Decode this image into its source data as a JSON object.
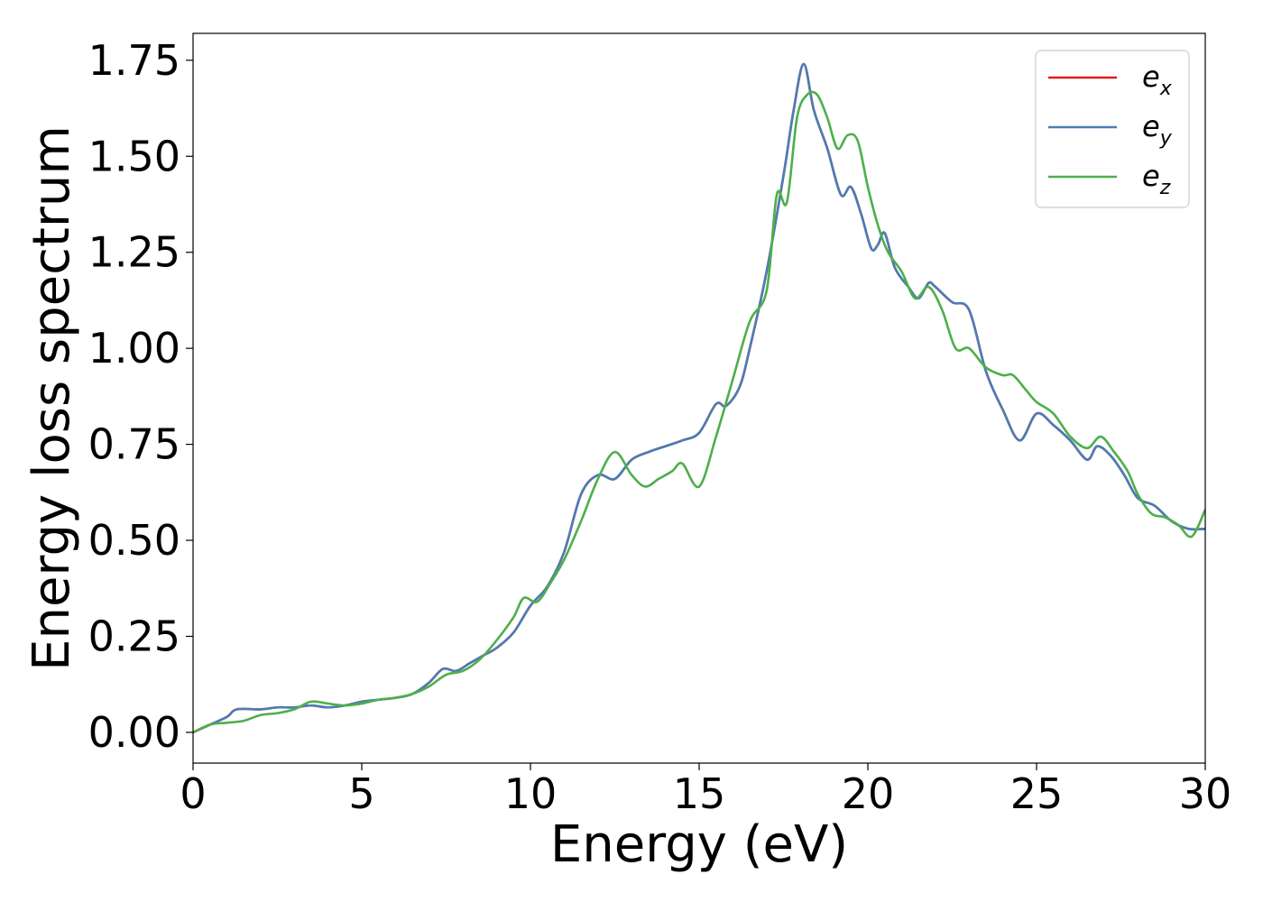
{
  "chart_data": {
    "type": "line",
    "title": "",
    "xlabel": "Energy (eV)",
    "ylabel": "Energy loss spectrum",
    "xlim": [
      0,
      30
    ],
    "ylim": [
      -0.08,
      1.82
    ],
    "x_ticks": [
      0,
      5,
      10,
      15,
      20,
      25,
      30
    ],
    "y_ticks": [
      0.0,
      0.25,
      0.5,
      0.75,
      1.0,
      1.25,
      1.5,
      1.75
    ],
    "grid": false,
    "legend_position": "top-right",
    "series": [
      {
        "name": "e",
        "subscript": "x",
        "color": "#e41a1c",
        "x": [
          0,
          0.5,
          1.0,
          1.3,
          2.0,
          2.5,
          3.0,
          3.5,
          4.0,
          4.5,
          5.0,
          5.5,
          6.0,
          6.5,
          7.0,
          7.4,
          7.8,
          8.2,
          8.6,
          9.0,
          9.5,
          10.0,
          10.5,
          11.0,
          11.5,
          12.0,
          12.5,
          13.0,
          13.5,
          14.0,
          14.5,
          15.0,
          15.5,
          15.8,
          16.2,
          16.5,
          17.0,
          17.5,
          17.8,
          18.1,
          18.4,
          18.8,
          19.2,
          19.5,
          19.8,
          20.1,
          20.3,
          20.5,
          20.8,
          21.2,
          21.5,
          21.8,
          22.0,
          22.5,
          23.0,
          23.5,
          24.0,
          24.5,
          25.0,
          25.5,
          26.0,
          26.5,
          26.8,
          27.2,
          27.6,
          28.0,
          28.5,
          29.0,
          29.5,
          30.0
        ],
        "values": [
          0.0,
          0.02,
          0.04,
          0.06,
          0.06,
          0.065,
          0.065,
          0.07,
          0.065,
          0.07,
          0.08,
          0.085,
          0.09,
          0.1,
          0.13,
          0.165,
          0.16,
          0.18,
          0.2,
          0.22,
          0.26,
          0.33,
          0.38,
          0.47,
          0.62,
          0.67,
          0.66,
          0.71,
          0.73,
          0.745,
          0.76,
          0.78,
          0.855,
          0.85,
          0.9,
          1.0,
          1.2,
          1.45,
          1.62,
          1.74,
          1.62,
          1.52,
          1.4,
          1.42,
          1.35,
          1.26,
          1.27,
          1.3,
          1.21,
          1.16,
          1.13,
          1.17,
          1.16,
          1.12,
          1.1,
          0.94,
          0.84,
          0.76,
          0.83,
          0.8,
          0.76,
          0.71,
          0.745,
          0.72,
          0.67,
          0.61,
          0.59,
          0.55,
          0.53,
          0.53
        ]
      },
      {
        "name": "e",
        "subscript": "y",
        "color": "#4a7db5",
        "x": [
          0,
          0.5,
          1.0,
          1.3,
          2.0,
          2.5,
          3.0,
          3.5,
          4.0,
          4.5,
          5.0,
          5.5,
          6.0,
          6.5,
          7.0,
          7.4,
          7.8,
          8.2,
          8.6,
          9.0,
          9.5,
          10.0,
          10.5,
          11.0,
          11.5,
          12.0,
          12.5,
          13.0,
          13.5,
          14.0,
          14.5,
          15.0,
          15.5,
          15.8,
          16.2,
          16.5,
          17.0,
          17.5,
          17.8,
          18.1,
          18.4,
          18.8,
          19.2,
          19.5,
          19.8,
          20.1,
          20.3,
          20.5,
          20.8,
          21.2,
          21.5,
          21.8,
          22.0,
          22.5,
          23.0,
          23.5,
          24.0,
          24.5,
          25.0,
          25.5,
          26.0,
          26.5,
          26.8,
          27.2,
          27.6,
          28.0,
          28.5,
          29.0,
          29.5,
          30.0
        ],
        "values": [
          0.0,
          0.02,
          0.04,
          0.06,
          0.06,
          0.065,
          0.065,
          0.07,
          0.065,
          0.07,
          0.08,
          0.085,
          0.09,
          0.1,
          0.13,
          0.165,
          0.16,
          0.18,
          0.2,
          0.22,
          0.26,
          0.33,
          0.38,
          0.47,
          0.62,
          0.67,
          0.66,
          0.71,
          0.73,
          0.745,
          0.76,
          0.78,
          0.855,
          0.85,
          0.9,
          1.0,
          1.2,
          1.45,
          1.62,
          1.74,
          1.62,
          1.52,
          1.4,
          1.42,
          1.35,
          1.26,
          1.27,
          1.3,
          1.21,
          1.16,
          1.13,
          1.17,
          1.16,
          1.12,
          1.1,
          0.94,
          0.84,
          0.76,
          0.83,
          0.8,
          0.76,
          0.71,
          0.745,
          0.72,
          0.67,
          0.61,
          0.59,
          0.55,
          0.53,
          0.53
        ]
      },
      {
        "name": "e",
        "subscript": "z",
        "color": "#4daf4a",
        "x": [
          0,
          0.5,
          1.0,
          1.5,
          2.0,
          2.5,
          3.0,
          3.5,
          4.0,
          4.5,
          5.0,
          5.5,
          6.0,
          6.5,
          7.0,
          7.5,
          8.0,
          8.5,
          9.0,
          9.5,
          9.8,
          10.2,
          10.6,
          11.0,
          11.5,
          12.0,
          12.5,
          13.0,
          13.4,
          13.8,
          14.2,
          14.5,
          15.0,
          15.5,
          16.0,
          16.5,
          17.0,
          17.3,
          17.6,
          17.9,
          18.2,
          18.5,
          18.8,
          19.1,
          19.4,
          19.7,
          20.0,
          20.3,
          20.6,
          21.0,
          21.4,
          21.8,
          22.2,
          22.6,
          23.0,
          23.5,
          24.0,
          24.3,
          24.7,
          25.0,
          25.5,
          26.0,
          26.5,
          26.9,
          27.3,
          27.7,
          28.0,
          28.4,
          28.8,
          29.2,
          29.6,
          30.0
        ],
        "values": [
          0.0,
          0.02,
          0.025,
          0.03,
          0.045,
          0.05,
          0.06,
          0.08,
          0.075,
          0.07,
          0.075,
          0.085,
          0.09,
          0.1,
          0.12,
          0.15,
          0.16,
          0.19,
          0.24,
          0.3,
          0.35,
          0.34,
          0.39,
          0.45,
          0.55,
          0.66,
          0.73,
          0.67,
          0.64,
          0.66,
          0.68,
          0.7,
          0.64,
          0.77,
          0.92,
          1.07,
          1.15,
          1.4,
          1.38,
          1.6,
          1.66,
          1.66,
          1.6,
          1.52,
          1.555,
          1.54,
          1.42,
          1.32,
          1.25,
          1.2,
          1.13,
          1.16,
          1.1,
          1.0,
          1.0,
          0.95,
          0.93,
          0.93,
          0.89,
          0.86,
          0.83,
          0.77,
          0.74,
          0.77,
          0.73,
          0.68,
          0.62,
          0.57,
          0.56,
          0.54,
          0.51,
          0.58
        ]
      }
    ]
  }
}
